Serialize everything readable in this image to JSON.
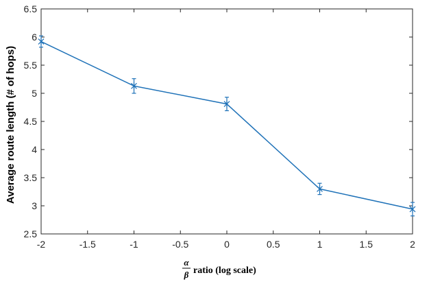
{
  "chart_data": {
    "type": "line",
    "title": "",
    "xlabel": "ratio (log scale)",
    "xlabel_numerator": "α",
    "xlabel_denominator": "β",
    "ylabel": "Average route length (# of hops)",
    "xlim": [
      -2,
      2
    ],
    "ylim": [
      2.5,
      6.5
    ],
    "x_ticks": [
      "-2",
      "-1.5",
      "-1",
      "-0.5",
      "0",
      "0.5",
      "1",
      "1.5",
      "2"
    ],
    "y_ticks": [
      "2.5",
      "3",
      "3.5",
      "4",
      "4.5",
      "5",
      "5.5",
      "6",
      "6.5"
    ],
    "x_tick_values": [
      -2,
      -1.5,
      -1,
      -0.5,
      0,
      0.5,
      1,
      1.5,
      2
    ],
    "y_tick_values": [
      2.5,
      3,
      3.5,
      4,
      4.5,
      5,
      5.5,
      6,
      6.5
    ],
    "grid": false,
    "legend": "none",
    "series": [
      {
        "color": "#1f72b8",
        "marker": "asterisk",
        "x": [
          -2,
          -1,
          0,
          1,
          2
        ],
        "y": [
          5.92,
          5.13,
          4.81,
          3.3,
          2.94
        ],
        "error": [
          0.1,
          0.13,
          0.12,
          0.1,
          0.12
        ]
      }
    ]
  }
}
